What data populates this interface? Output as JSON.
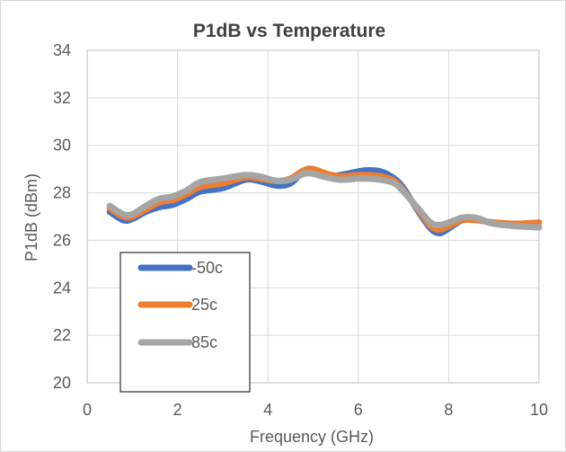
{
  "chart_data": {
    "type": "line",
    "title": "P1dB vs Temperature",
    "xlabel": "Frequency (GHz)",
    "ylabel": "P1dB (dBm)",
    "xlim": [
      0,
      10
    ],
    "ylim": [
      20,
      34
    ],
    "xticks": [
      0,
      2,
      4,
      6,
      8,
      10
    ],
    "yticks": [
      20,
      22,
      24,
      26,
      28,
      30,
      32,
      34
    ],
    "x_tick_labels": [
      "0",
      "2",
      "4",
      "6",
      "8",
      "10"
    ],
    "y_tick_labels": [
      "20",
      "22",
      "24",
      "26",
      "28",
      "30",
      "32",
      "34"
    ],
    "grid": true,
    "legend_position": "bottom-left",
    "series": [
      {
        "name": "-50c",
        "color": "#4472C4",
        "points": [
          [
            0.5,
            27.2
          ],
          [
            0.8,
            26.85
          ],
          [
            1.0,
            26.9
          ],
          [
            1.3,
            27.2
          ],
          [
            1.6,
            27.4
          ],
          [
            1.9,
            27.5
          ],
          [
            2.2,
            27.75
          ],
          [
            2.5,
            28.05
          ],
          [
            3.0,
            28.2
          ],
          [
            3.5,
            28.55
          ],
          [
            3.8,
            28.5
          ],
          [
            4.2,
            28.3
          ],
          [
            4.5,
            28.4
          ],
          [
            4.8,
            28.9
          ],
          [
            5.0,
            28.9
          ],
          [
            5.3,
            28.7
          ],
          [
            5.6,
            28.75
          ],
          [
            6.0,
            28.9
          ],
          [
            6.2,
            28.95
          ],
          [
            6.5,
            28.9
          ],
          [
            6.8,
            28.6
          ],
          [
            7.0,
            28.2
          ],
          [
            7.3,
            27.3
          ],
          [
            7.6,
            26.5
          ],
          [
            7.8,
            26.3
          ],
          [
            8.0,
            26.5
          ],
          [
            8.3,
            26.85
          ],
          [
            8.6,
            26.9
          ],
          [
            9.0,
            26.7
          ],
          [
            9.5,
            26.6
          ],
          [
            10.0,
            26.55
          ]
        ]
      },
      {
        "name": "25c",
        "color": "#ED7D31",
        "points": [
          [
            0.5,
            27.35
          ],
          [
            0.8,
            27.0
          ],
          [
            1.0,
            27.0
          ],
          [
            1.3,
            27.3
          ],
          [
            1.6,
            27.6
          ],
          [
            1.9,
            27.7
          ],
          [
            2.2,
            27.95
          ],
          [
            2.5,
            28.25
          ],
          [
            3.0,
            28.4
          ],
          [
            3.5,
            28.65
          ],
          [
            3.8,
            28.6
          ],
          [
            4.2,
            28.5
          ],
          [
            4.5,
            28.6
          ],
          [
            4.8,
            28.95
          ],
          [
            5.0,
            29.0
          ],
          [
            5.3,
            28.8
          ],
          [
            5.6,
            28.7
          ],
          [
            6.0,
            28.75
          ],
          [
            6.2,
            28.75
          ],
          [
            6.5,
            28.7
          ],
          [
            6.8,
            28.5
          ],
          [
            7.0,
            28.1
          ],
          [
            7.3,
            27.35
          ],
          [
            7.6,
            26.6
          ],
          [
            7.8,
            26.45
          ],
          [
            8.0,
            26.6
          ],
          [
            8.3,
            26.85
          ],
          [
            8.6,
            26.85
          ],
          [
            9.0,
            26.75
          ],
          [
            9.5,
            26.7
          ],
          [
            10.0,
            26.75
          ]
        ]
      },
      {
        "name": "85c",
        "color": "#A5A5A5",
        "points": [
          [
            0.5,
            27.45
          ],
          [
            0.8,
            27.1
          ],
          [
            1.0,
            27.1
          ],
          [
            1.3,
            27.45
          ],
          [
            1.6,
            27.75
          ],
          [
            1.9,
            27.85
          ],
          [
            2.2,
            28.1
          ],
          [
            2.5,
            28.45
          ],
          [
            3.0,
            28.6
          ],
          [
            3.5,
            28.75
          ],
          [
            3.8,
            28.7
          ],
          [
            4.2,
            28.5
          ],
          [
            4.5,
            28.55
          ],
          [
            4.8,
            28.8
          ],
          [
            5.0,
            28.8
          ],
          [
            5.3,
            28.65
          ],
          [
            5.6,
            28.55
          ],
          [
            6.0,
            28.6
          ],
          [
            6.2,
            28.6
          ],
          [
            6.5,
            28.55
          ],
          [
            6.8,
            28.4
          ],
          [
            7.0,
            28.05
          ],
          [
            7.3,
            27.4
          ],
          [
            7.6,
            26.75
          ],
          [
            7.8,
            26.65
          ],
          [
            8.0,
            26.75
          ],
          [
            8.3,
            26.95
          ],
          [
            8.6,
            26.95
          ],
          [
            9.0,
            26.7
          ],
          [
            9.5,
            26.6
          ],
          [
            10.0,
            26.55
          ]
        ]
      }
    ]
  }
}
